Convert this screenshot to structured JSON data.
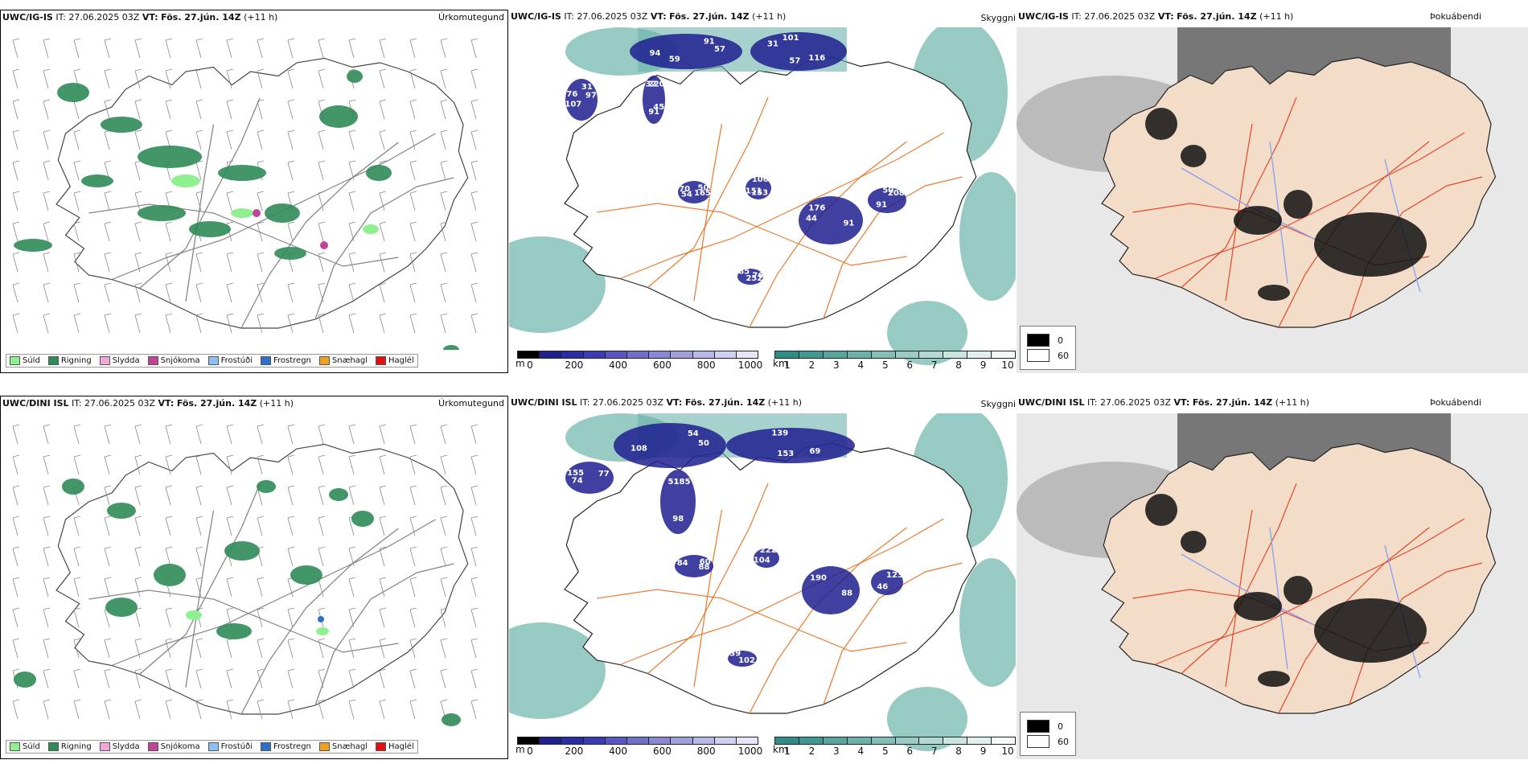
{
  "rows": [
    {
      "model": "UWC/IG-IS",
      "it": "IT: 27.06.2025 03Z",
      "vt_label": "VT:",
      "vt": "Fös. 27.jún. 14Z",
      "lead": "(+11 h)",
      "panel_precip_label": "Úrkomutegund",
      "panel_cloudbase_label": "Skyggni",
      "panel_cloud_label": "Þokuábendi",
      "cloudbase_numbers": [
        "57",
        "57",
        "76",
        "220",
        "165",
        "151",
        "176",
        "208",
        "252",
        "94",
        "101",
        "97",
        "91",
        "70",
        "106",
        "91",
        "91",
        "85",
        "91",
        "116",
        "107",
        "32",
        "50",
        "153",
        "44",
        "50",
        "76",
        "59",
        "31",
        "31",
        "45",
        "54"
      ]
    },
    {
      "model": "UWC/DINI ISL",
      "it": "IT: 27.06.2025 03Z",
      "vt_label": "VT:",
      "vt": "Fös. 27.jún. 14Z",
      "lead": "(+11 h)",
      "panel_precip_label": "Úrkomutegund",
      "panel_cloudbase_label": "Skyggni",
      "panel_cloud_label": "Þokuábendi",
      "cloudbase_numbers": [
        "50",
        "153",
        "155",
        "185",
        "88",
        "104",
        "190",
        "123",
        "102",
        "108",
        "139",
        "77",
        "98",
        "84",
        "222",
        "88",
        "46",
        "39",
        "54",
        "69",
        "74",
        "51",
        "60"
      ]
    }
  ],
  "precip_legend": [
    {
      "label": "Súld",
      "color": "#8ef08e"
    },
    {
      "label": "Rigning",
      "color": "#2e8b57"
    },
    {
      "label": "Slydda",
      "color": "#f4a6d7"
    },
    {
      "label": "Snjókoma",
      "color": "#c2449a"
    },
    {
      "label": "Frostúði",
      "color": "#8fbff0"
    },
    {
      "label": "Frostregn",
      "color": "#2f6fc8"
    },
    {
      "label": "Snæhagl",
      "color": "#f0a020"
    },
    {
      "label": "Haglél",
      "color": "#e01010"
    }
  ],
  "cloudbase_bar": {
    "unit": "m",
    "ticks": [
      "0",
      "200",
      "400",
      "600",
      "800",
      "1000"
    ],
    "colors": [
      "#000000",
      "#1f1f8f",
      "#2b2ba8",
      "#3b3bb8",
      "#5656c4",
      "#6f6fcc",
      "#8888d6",
      "#a0a0e0",
      "#b8b8ea",
      "#d0d0f2",
      "#e6e6fa"
    ]
  },
  "visibility_bar": {
    "unit": "km",
    "ticks": [
      "1",
      "2",
      "3",
      "4",
      "5",
      "6",
      "7",
      "8",
      "9",
      "10"
    ],
    "colors": [
      "#2f8f86",
      "#3f9990",
      "#56a69d",
      "#6bb3aa",
      "#82bfb7",
      "#9acbc5",
      "#b2d8d3",
      "#cae4e0",
      "#e0f0ee",
      "#f4faf9"
    ]
  },
  "cloud_legend": [
    {
      "label": "0",
      "color": "#000000"
    },
    {
      "label": "60",
      "color": "#ffffff"
    }
  ],
  "colors": {
    "land": "#f3dcc8",
    "road": "#e8701f",
    "road_red": "#e03a1a",
    "river": "#8aa0f0",
    "coast": "#111111",
    "sea_haze": "#c8c8c8"
  }
}
